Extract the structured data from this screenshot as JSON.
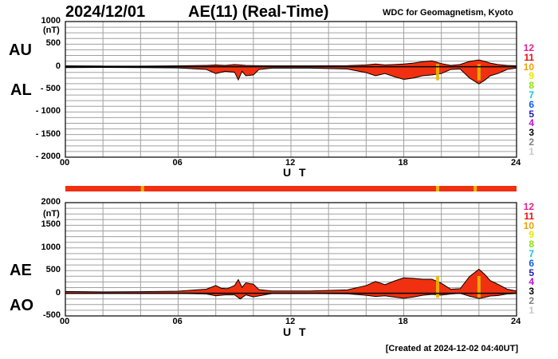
{
  "header": {
    "date": "2024/12/01",
    "title": "AE(11) (Real-Time)",
    "source": "WDC for Geomagnetism, Kyoto"
  },
  "footer": {
    "created": "[Created at 2024-12-02 04:40UT]"
  },
  "legend": {
    "items": [
      {
        "label": "12",
        "color": "#e8208a"
      },
      {
        "label": "11",
        "color": "#e81010"
      },
      {
        "label": "10",
        "color": "#f0a000"
      },
      {
        "label": "9",
        "color": "#e8e800"
      },
      {
        "label": "8",
        "color": "#90e010"
      },
      {
        "label": "7",
        "color": "#10c8e0"
      },
      {
        "label": "6",
        "color": "#1060e8"
      },
      {
        "label": "5",
        "color": "#2020b0"
      },
      {
        "label": "4",
        "color": "#c010d0"
      },
      {
        "label": "3",
        "color": "#000000"
      },
      {
        "label": "2",
        "color": "#808080"
      },
      {
        "label": "1",
        "color": "#c8c8c8"
      }
    ]
  },
  "colors": {
    "fill": "#f03010",
    "line": "#000000",
    "grid": "#a0a0a0",
    "bar": "#f03010",
    "marker": "#e8b800"
  },
  "chart_data": [
    {
      "type": "area",
      "id": "au_al",
      "labels": {
        "upper": "AU",
        "lower": "AL"
      },
      "ylim": [
        -2000,
        1000
      ],
      "yticks": [
        {
          "value": 1000,
          "label": "1000"
        },
        {
          "value": 500,
          "label": "500"
        },
        {
          "value": 0,
          "label": "0"
        },
        {
          "value": -500,
          "label": "- 500"
        },
        {
          "value": -1000,
          "label": "- 1000"
        },
        {
          "value": -1500,
          "label": "- 1500"
        },
        {
          "value": -2000,
          "label": "- 2000"
        }
      ],
      "unit": "(nT)",
      "xlim": [
        0,
        24
      ],
      "xticks": [
        {
          "value": 0,
          "label": "00"
        },
        {
          "value": 6,
          "label": "06"
        },
        {
          "value": 12,
          "label": "12"
        },
        {
          "value": 18,
          "label": "18"
        },
        {
          "value": 24,
          "label": "24"
        }
      ],
      "xlabel": "U T",
      "upper_series": {
        "name": "AU",
        "x": [
          0,
          2,
          4,
          6,
          7.5,
          8,
          8.5,
          9,
          9.3,
          9.6,
          10,
          11,
          13,
          15,
          16,
          16.5,
          17,
          17.5,
          18,
          18.5,
          19,
          19.5,
          20,
          20.5,
          21,
          21.5,
          22,
          22.3,
          22.6,
          23,
          23.5,
          24
        ],
        "y": [
          20,
          15,
          15,
          20,
          30,
          40,
          30,
          50,
          40,
          30,
          25,
          20,
          20,
          25,
          40,
          60,
          40,
          50,
          60,
          80,
          110,
          130,
          70,
          30,
          50,
          120,
          150,
          120,
          80,
          50,
          30,
          20
        ]
      },
      "lower_series": {
        "name": "AL",
        "x": [
          0,
          2,
          4,
          6,
          7.5,
          8,
          8.5,
          9,
          9.2,
          9.4,
          9.6,
          10,
          10.3,
          11,
          13,
          15,
          16,
          16.5,
          17,
          17.5,
          18,
          18.5,
          19,
          19.5,
          20,
          20.5,
          21,
          21.5,
          22,
          22.3,
          22.6,
          23,
          23.5,
          24
        ],
        "y": [
          -20,
          -15,
          -20,
          -25,
          -60,
          -150,
          -100,
          -120,
          -290,
          -100,
          -200,
          -180,
          -60,
          -30,
          -30,
          -50,
          -130,
          -200,
          -150,
          -220,
          -280,
          -250,
          -200,
          -180,
          -150,
          -60,
          -50,
          -250,
          -380,
          -300,
          -200,
          -150,
          -60,
          -30
        ]
      },
      "markers": [
        19.8,
        22.0
      ]
    },
    {
      "type": "area",
      "id": "ae_ao",
      "labels": {
        "upper": "AE",
        "lower": "AO"
      },
      "ylim": [
        -500,
        2000
      ],
      "yticks": [
        {
          "value": 2000,
          "label": "2000"
        },
        {
          "value": 1500,
          "label": "1500"
        },
        {
          "value": 1000,
          "label": "1000"
        },
        {
          "value": 500,
          "label": "500"
        },
        {
          "value": 0,
          "label": "0"
        },
        {
          "value": -500,
          "label": "-500"
        }
      ],
      "unit": "(nT)",
      "xlim": [
        0,
        24
      ],
      "xticks": [
        {
          "value": 0,
          "label": "00"
        },
        {
          "value": 6,
          "label": "06"
        },
        {
          "value": 12,
          "label": "12"
        },
        {
          "value": 18,
          "label": "18"
        },
        {
          "value": 24,
          "label": "24"
        }
      ],
      "xlabel": "U T",
      "series": [
        {
          "name": "AE",
          "x": [
            0,
            2,
            4,
            6,
            7.5,
            8,
            8.3,
            8.6,
            9,
            9.2,
            9.4,
            9.6,
            10,
            10.3,
            11,
            13,
            15,
            16,
            16.5,
            17,
            17.5,
            18,
            18.5,
            19,
            19.5,
            20,
            20.5,
            21,
            21.5,
            22,
            22.3,
            22.6,
            23,
            23.5,
            24
          ],
          "y": [
            40,
            30,
            35,
            45,
            90,
            170,
            110,
            100,
            170,
            300,
            130,
            230,
            200,
            80,
            50,
            50,
            75,
            170,
            260,
            190,
            270,
            340,
            330,
            310,
            310,
            220,
            90,
            100,
            370,
            530,
            420,
            280,
            200,
            90,
            50
          ]
        },
        {
          "name": "AO",
          "x": [
            0,
            2,
            4,
            6,
            7.5,
            8,
            8.5,
            9,
            9.3,
            9.6,
            10,
            11,
            13,
            15,
            16,
            16.5,
            17,
            17.5,
            18,
            18.5,
            19,
            19.5,
            20,
            20.5,
            21,
            21.5,
            22,
            22.3,
            22.6,
            23,
            23.5,
            24
          ],
          "y": [
            0,
            0,
            -3,
            -3,
            -15,
            -55,
            -35,
            -35,
            -125,
            -35,
            -80,
            -5,
            -5,
            -12,
            -45,
            -70,
            -55,
            -85,
            -110,
            -85,
            -45,
            -25,
            -40,
            -15,
            0,
            -65,
            -115,
            -90,
            -60,
            -50,
            -15,
            -5
          ]
        }
      ],
      "markers": [
        19.8,
        22.0
      ]
    }
  ],
  "status_bar": {
    "markers": [
      4.1,
      19.8,
      21.8
    ]
  }
}
